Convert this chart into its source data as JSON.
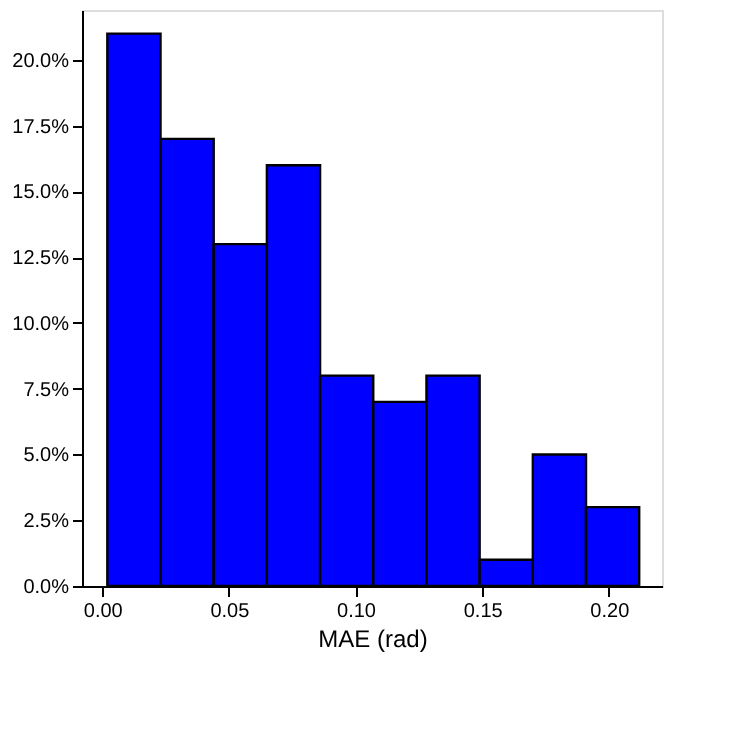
{
  "chart_data": {
    "type": "histogram",
    "xlabel": "MAE (rad)",
    "bins": [
      0.002,
      0.023,
      0.044,
      0.065,
      0.086,
      0.107,
      0.128,
      0.149,
      0.17,
      0.191,
      0.212
    ],
    "values": [
      21,
      17,
      13,
      16,
      8,
      7,
      8,
      1,
      5,
      3
    ],
    "color": "#0000ff",
    "xlim": [
      -0.008,
      0.221
    ],
    "xticks": [
      {
        "value": 0,
        "label": "0.00"
      },
      {
        "value": 0.05,
        "label": "0.05"
      },
      {
        "value": 0.1,
        "label": "0.10"
      },
      {
        "value": 0.15,
        "label": "0.15"
      },
      {
        "value": 0.2,
        "label": "0.20"
      }
    ],
    "ylim": [
      0,
      21.9
    ],
    "yticks": [
      {
        "value": 0,
        "label": "0.0%"
      },
      {
        "value": 2.5,
        "label": "2.5%"
      },
      {
        "value": 5,
        "label": "5.0%"
      },
      {
        "value": 7.5,
        "label": "7.5%"
      },
      {
        "value": 10,
        "label": "10.0%"
      },
      {
        "value": 12.5,
        "label": "12.5%"
      },
      {
        "value": 15,
        "label": "15.0%"
      },
      {
        "value": 17.5,
        "label": "17.5%"
      },
      {
        "value": 20,
        "label": "20.0%"
      }
    ],
    "grid": false
  }
}
